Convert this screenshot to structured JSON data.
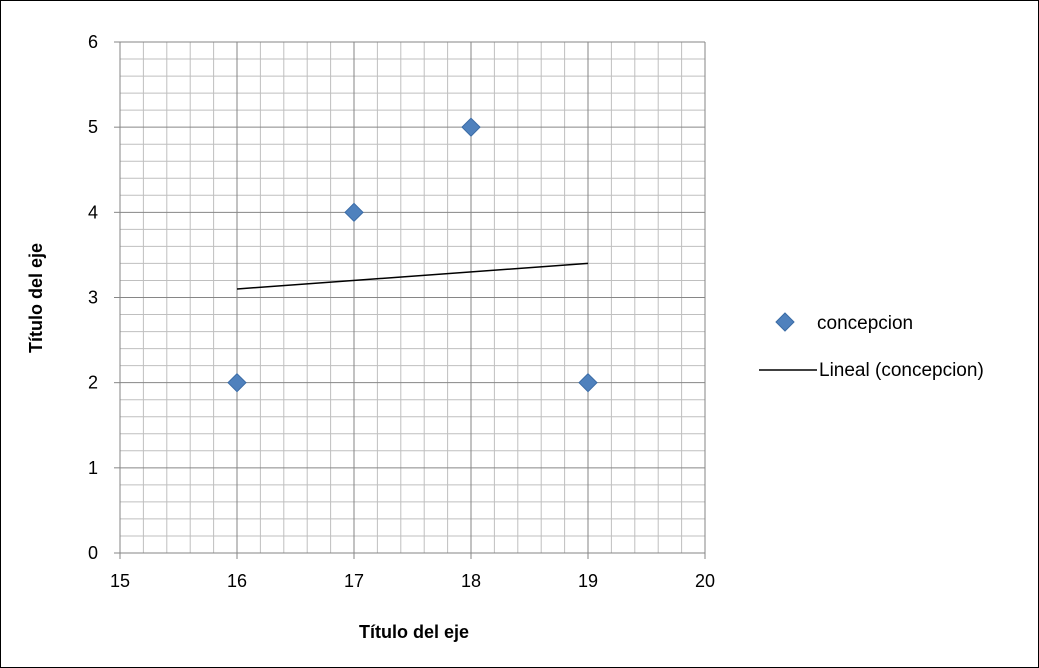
{
  "chart_data": {
    "type": "scatter",
    "title": "",
    "xlabel": "Título del eje",
    "ylabel": "Título del eje",
    "xlim": [
      15,
      20
    ],
    "ylim": [
      0,
      6
    ],
    "x_ticks": [
      "15",
      "16",
      "17",
      "18",
      "19",
      "20"
    ],
    "y_ticks": [
      "0",
      "1",
      "2",
      "3",
      "4",
      "5",
      "6"
    ],
    "grid": true,
    "legend_position": "right",
    "series": [
      {
        "name": "concepcion",
        "marker": "diamond",
        "color": "#4F81BD",
        "points": [
          {
            "x": 16,
            "y": 2
          },
          {
            "x": 17,
            "y": 4
          },
          {
            "x": 18,
            "y": 5
          },
          {
            "x": 19,
            "y": 2
          }
        ]
      }
    ],
    "trendline": {
      "name": "Lineal (concepcion)",
      "type": "linear",
      "color": "#000000",
      "start": {
        "x": 16,
        "y": 3.1
      },
      "end": {
        "x": 19,
        "y": 3.4
      }
    }
  }
}
